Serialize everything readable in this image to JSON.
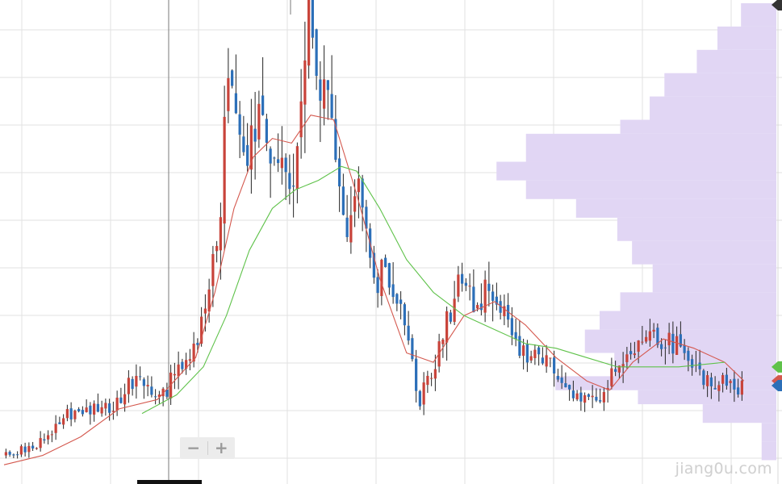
{
  "brand": {
    "watermark": "jiang0u.com"
  },
  "toolbar": {
    "zoom_out_label": "−",
    "zoom_in_label": "+"
  },
  "colors": {
    "candle_up": "#c8433a",
    "candle_down": "#2c6fb8",
    "ma_short": "#d4584e",
    "ma_long": "#5fc24a",
    "volume_profile": "#e1d6f4",
    "grid": "#e2e2e2",
    "marker_green": "#5fc24a",
    "marker_red": "#d4584e",
    "marker_blue": "#2c6fb8",
    "marker_dark": "#333333"
  },
  "chart_data": {
    "type": "candlestick",
    "title": "",
    "xlabel": "",
    "ylabel": "",
    "grid": true,
    "x_range": [
      0,
      200
    ],
    "y_range": [
      0,
      100
    ],
    "series": [
      {
        "role": "price",
        "kind": "candlestick",
        "anchors": [
          [
            0,
            3
          ],
          [
            10,
            6
          ],
          [
            15,
            12
          ],
          [
            22,
            13
          ],
          [
            29,
            14
          ],
          [
            32,
            19
          ],
          [
            36,
            18
          ],
          [
            39,
            14
          ],
          [
            44,
            20
          ],
          [
            48,
            22
          ],
          [
            52,
            35
          ],
          [
            55,
            48
          ],
          [
            58,
            82
          ],
          [
            63,
            67
          ],
          [
            67,
            78
          ],
          [
            71,
            65
          ],
          [
            75,
            66
          ],
          [
            79,
            100
          ],
          [
            82,
            85
          ],
          [
            86,
            67
          ],
          [
            89,
            48
          ],
          [
            92,
            60
          ],
          [
            96,
            42
          ],
          [
            101,
            40
          ],
          [
            108,
            15
          ],
          [
            113,
            25
          ],
          [
            118,
            40
          ],
          [
            122,
            35
          ],
          [
            127,
            39
          ],
          [
            134,
            25
          ],
          [
            140,
            25
          ],
          [
            148,
            15
          ],
          [
            154,
            15
          ],
          [
            161,
            24
          ],
          [
            167,
            31
          ],
          [
            170,
            26
          ],
          [
            174,
            27
          ],
          [
            182,
            20
          ],
          [
            188,
            18
          ],
          [
            193,
            18
          ]
        ]
      },
      {
        "role": "moving-average-short",
        "kind": "line",
        "points": [
          [
            0,
            1
          ],
          [
            10,
            3
          ],
          [
            20,
            7
          ],
          [
            30,
            13
          ],
          [
            40,
            15
          ],
          [
            50,
            24
          ],
          [
            55,
            38
          ],
          [
            60,
            56
          ],
          [
            65,
            67
          ],
          [
            70,
            71
          ],
          [
            75,
            70
          ],
          [
            80,
            76
          ],
          [
            86,
            75
          ],
          [
            92,
            59
          ],
          [
            98,
            41
          ],
          [
            105,
            25
          ],
          [
            112,
            23
          ],
          [
            120,
            33
          ],
          [
            128,
            36
          ],
          [
            136,
            31
          ],
          [
            144,
            24
          ],
          [
            152,
            19
          ],
          [
            158,
            17
          ],
          [
            164,
            23
          ],
          [
            172,
            28
          ],
          [
            180,
            26
          ],
          [
            188,
            23
          ],
          [
            193,
            19
          ]
        ]
      },
      {
        "role": "moving-average-long",
        "kind": "line",
        "points": [
          [
            36,
            12
          ],
          [
            45,
            16
          ],
          [
            52,
            22
          ],
          [
            58,
            33
          ],
          [
            64,
            47
          ],
          [
            70,
            56
          ],
          [
            76,
            60
          ],
          [
            82,
            62
          ],
          [
            88,
            65
          ],
          [
            92,
            64
          ],
          [
            98,
            56
          ],
          [
            105,
            45
          ],
          [
            112,
            38
          ],
          [
            120,
            33
          ],
          [
            128,
            30
          ],
          [
            136,
            27
          ],
          [
            144,
            26
          ],
          [
            152,
            24
          ],
          [
            160,
            22
          ],
          [
            168,
            22
          ],
          [
            176,
            22
          ],
          [
            188,
            23
          ]
        ]
      }
    ],
    "volume_profile": [
      {
        "from": 95,
        "to": 100,
        "level": 0.12
      },
      {
        "from": 90,
        "to": 95,
        "level": 0.2
      },
      {
        "from": 85,
        "to": 90,
        "level": 0.27
      },
      {
        "from": 80,
        "to": 85,
        "level": 0.38
      },
      {
        "from": 75,
        "to": 80,
        "level": 0.43
      },
      {
        "from": 72,
        "to": 75,
        "level": 0.53
      },
      {
        "from": 66,
        "to": 72,
        "level": 0.85
      },
      {
        "from": 62,
        "to": 66,
        "level": 0.95
      },
      {
        "from": 58,
        "to": 62,
        "level": 0.85
      },
      {
        "from": 54,
        "to": 58,
        "level": 0.68
      },
      {
        "from": 49,
        "to": 54,
        "level": 0.54
      },
      {
        "from": 44,
        "to": 49,
        "level": 0.49
      },
      {
        "from": 38,
        "to": 44,
        "level": 0.42
      },
      {
        "from": 34,
        "to": 38,
        "level": 0.53
      },
      {
        "from": 30,
        "to": 34,
        "level": 0.6
      },
      {
        "from": 25,
        "to": 30,
        "level": 0.65
      },
      {
        "from": 20,
        "to": 25,
        "level": 0.55
      },
      {
        "from": 17,
        "to": 20,
        "level": 0.75
      },
      {
        "from": 14,
        "to": 17,
        "level": 0.47
      },
      {
        "from": 10,
        "to": 14,
        "level": 0.25
      },
      {
        "from": 6,
        "to": 10,
        "level": 0.05
      },
      {
        "from": 2,
        "to": 6,
        "level": 0.05
      }
    ],
    "price_markers": [
      {
        "series": "moving-average-long",
        "color": "green",
        "y": 22
      },
      {
        "series": "moving-average-short",
        "color": "red",
        "y": 19
      },
      {
        "series": "price",
        "color": "blue",
        "y": 18
      },
      {
        "series": "top",
        "color": "dark",
        "y": 101
      }
    ]
  }
}
